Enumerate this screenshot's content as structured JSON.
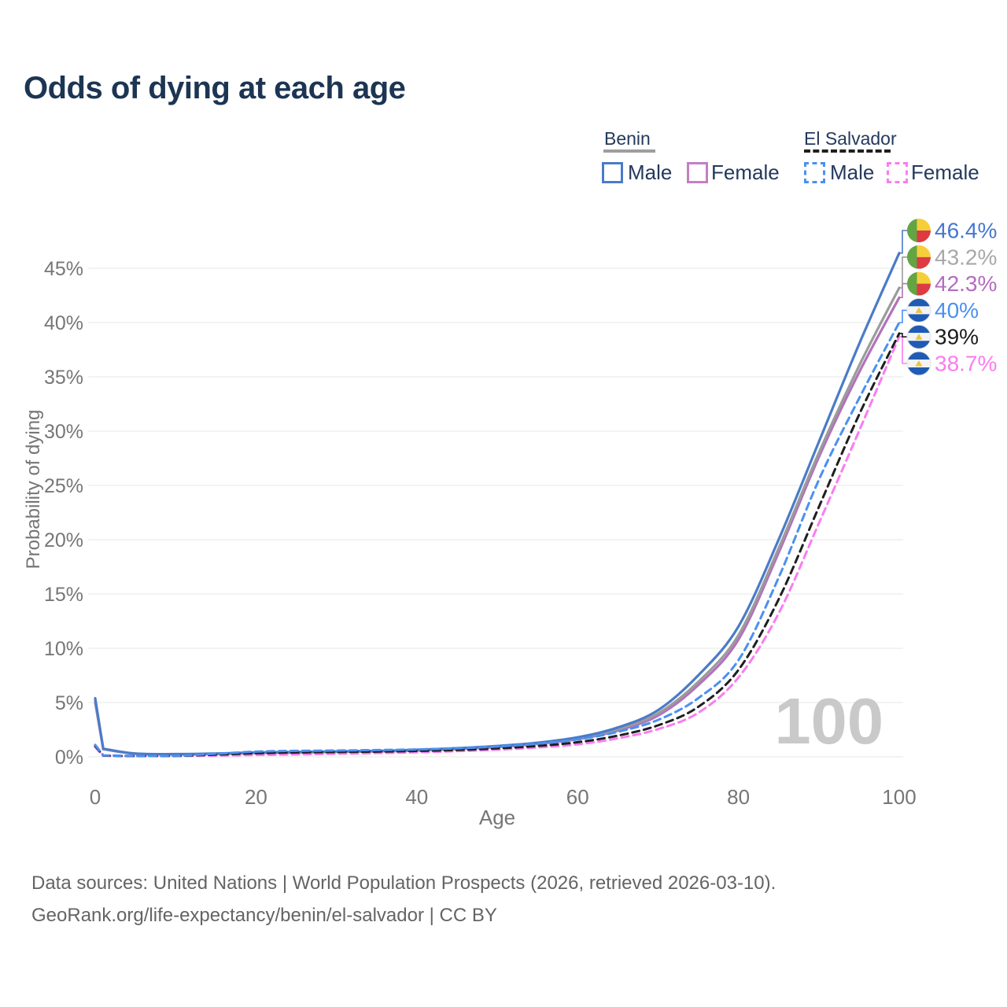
{
  "title": "Odds of dying at each age",
  "colors": {
    "title": "#1c3553",
    "tick": "#767676",
    "grid": "#ececec",
    "watermark": "#c9c9c9",
    "footer": "#646464",
    "legendtext": "#24395c"
  },
  "legend": {
    "groups": [
      {
        "name": "Benin",
        "line_style": "solid",
        "rule_color": "#9e9e9e",
        "items": [
          {
            "label": "Male",
            "color": "#4b7bc8"
          },
          {
            "label": "Female",
            "color": "#c37fc3"
          }
        ]
      },
      {
        "name": "El Salvador",
        "line_style": "dashed",
        "rule_color": "#1f1f1f",
        "items": [
          {
            "label": "Male",
            "color": "#4a90f2"
          },
          {
            "label": "Female",
            "color": "#fa7cf0"
          }
        ]
      }
    ]
  },
  "chart_data": {
    "type": "line",
    "title": "Odds of dying at each age",
    "xlabel": "Age",
    "ylabel": "Probability of dying",
    "xlim": [
      0,
      100
    ],
    "ylim": [
      0,
      47
    ],
    "grid": "horizontal",
    "x_tick_labels": [
      "0",
      "20",
      "40",
      "60",
      "80",
      "100"
    ],
    "x_tick_values": [
      0,
      20,
      40,
      60,
      80,
      100
    ],
    "y_tick_labels": [
      "0%",
      "5%",
      "10%",
      "15%",
      "20%",
      "25%",
      "30%",
      "35%",
      "40%",
      "45%"
    ],
    "y_tick_values": [
      0,
      5,
      10,
      15,
      20,
      25,
      30,
      35,
      40,
      45
    ],
    "watermark": "100",
    "x": [
      0,
      1,
      5,
      10,
      15,
      20,
      25,
      30,
      35,
      40,
      45,
      50,
      55,
      60,
      65,
      70,
      75,
      80,
      85,
      90,
      95,
      100
    ],
    "series": [
      {
        "name": "Benin Female",
        "country": "Benin",
        "sex": "Female",
        "color": "#b272bb",
        "label_color": "#b46cc0",
        "dash": false,
        "flag": "benin",
        "end_label": "42.3%",
        "end_value": 42.3,
        "label_row": 2,
        "values": [
          5.0,
          0.7,
          0.28,
          0.23,
          0.26,
          0.34,
          0.39,
          0.44,
          0.49,
          0.57,
          0.71,
          0.9,
          1.18,
          1.62,
          2.42,
          3.8,
          6.6,
          10.8,
          18.8,
          27.6,
          35.4,
          42.3
        ]
      },
      {
        "name": "Benin (both sexes)",
        "country": "Benin",
        "sex": "Both",
        "color": "#9b9b9b",
        "label_color": "#a8a8a8",
        "dash": false,
        "flag": "benin",
        "end_label": "43.2%",
        "end_value": 43.2,
        "label_row": 1,
        "values": [
          5.2,
          0.72,
          0.29,
          0.24,
          0.28,
          0.37,
          0.42,
          0.47,
          0.52,
          0.6,
          0.75,
          0.95,
          1.25,
          1.7,
          2.55,
          4.0,
          6.9,
          11.2,
          19.2,
          28.0,
          36.0,
          43.2
        ]
      },
      {
        "name": "Benin Male",
        "country": "Benin",
        "sex": "Male",
        "color": "#4b7bc8",
        "label_color": "#4577d2",
        "dash": false,
        "flag": "benin",
        "end_label": "46.4%",
        "end_value": 46.4,
        "label_row": 0,
        "values": [
          5.4,
          0.75,
          0.3,
          0.25,
          0.3,
          0.4,
          0.45,
          0.5,
          0.55,
          0.65,
          0.8,
          1.0,
          1.3,
          1.8,
          2.7,
          4.3,
          7.5,
          12.0,
          20.0,
          29.0,
          38.0,
          46.4
        ]
      },
      {
        "name": "El Salvador Female",
        "country": "El Salvador",
        "sex": "Female",
        "color": "#fa7cf0",
        "label_color": "#fa7cf0",
        "dash": true,
        "flag": "el-salvador",
        "end_label": "38.7%",
        "end_value": 38.7,
        "label_row": 5,
        "values": [
          0.9,
          0.1,
          0.06,
          0.07,
          0.11,
          0.17,
          0.22,
          0.28,
          0.34,
          0.42,
          0.52,
          0.66,
          0.86,
          1.15,
          1.7,
          2.55,
          4.05,
          7.3,
          13.2,
          21.5,
          30.0,
          38.7
        ]
      },
      {
        "name": "El Salvador (both sexes)",
        "country": "El Salvador",
        "sex": "Both",
        "color": "#1f1f1f",
        "label_color": "#1c1c1c",
        "dash": true,
        "flag": "el-salvador",
        "end_label": "39%",
        "end_value": 39.0,
        "label_row": 4,
        "values": [
          1.0,
          0.12,
          0.07,
          0.09,
          0.2,
          0.33,
          0.4,
          0.44,
          0.48,
          0.54,
          0.63,
          0.78,
          1.0,
          1.35,
          1.95,
          2.9,
          4.6,
          8.0,
          14.5,
          23.0,
          31.5,
          39.0
        ]
      },
      {
        "name": "El Salvador Male",
        "country": "El Salvador",
        "sex": "Male",
        "color": "#4a90f2",
        "label_color": "#4a90f2",
        "dash": true,
        "flag": "el-salvador",
        "end_label": "40%",
        "end_value": 40.0,
        "label_row": 3,
        "values": [
          1.1,
          0.14,
          0.08,
          0.1,
          0.28,
          0.48,
          0.55,
          0.58,
          0.62,
          0.68,
          0.78,
          0.95,
          1.2,
          1.6,
          2.3,
          3.4,
          5.4,
          8.9,
          16.5,
          25.5,
          33.0,
          40.0
        ]
      }
    ],
    "flag_colors": {
      "benin": {
        "green": "#63a443",
        "yellow": "#f5cf3a",
        "red": "#dd3a43"
      },
      "el_salvador": {
        "blue": "#1f5bb5",
        "white": "#f4f4f4",
        "gold": "#e9c53f"
      }
    }
  },
  "footer": {
    "line1": "Data sources: United Nations | World Population Prospects (2026, retrieved 2026-03-10).",
    "line2": "GeoRank.org/life-expectancy/benin/el-salvador | CC BY"
  }
}
